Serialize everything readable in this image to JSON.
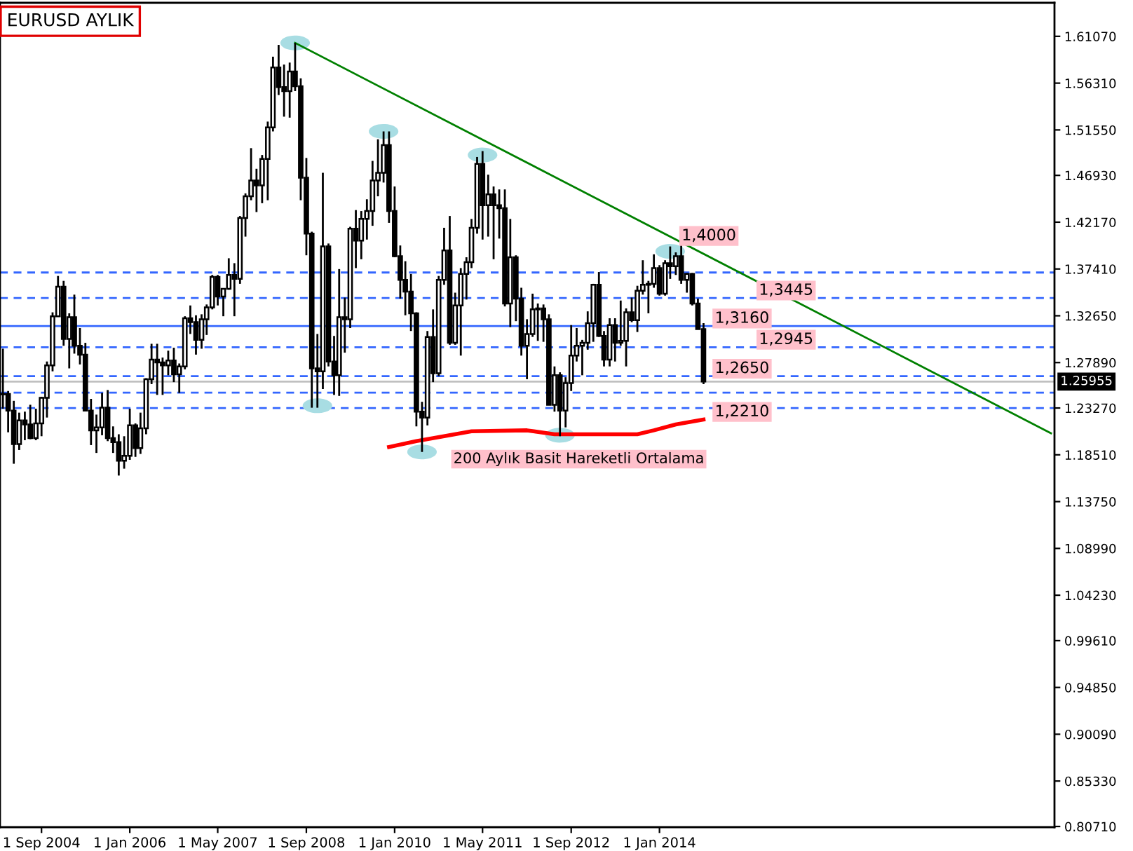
{
  "chart_data": {
    "type": "candlestick",
    "title": "EURUSD AYLIK",
    "x": [
      "2004-02",
      "2004-03",
      "2004-04",
      "2004-05",
      "2004-06",
      "2004-07",
      "2004-08",
      "2004-09",
      "2004-10",
      "2004-11",
      "2004-12",
      "2005-01",
      "2005-02",
      "2005-03",
      "2005-04",
      "2005-05",
      "2005-06",
      "2005-07",
      "2005-08",
      "2005-09",
      "2005-10",
      "2005-11",
      "2005-12",
      "2006-01",
      "2006-02",
      "2006-03",
      "2006-04",
      "2006-05",
      "2006-06",
      "2006-07",
      "2006-08",
      "2006-09",
      "2006-10",
      "2006-11",
      "2006-12",
      "2007-01",
      "2007-02",
      "2007-03",
      "2007-04",
      "2007-05",
      "2007-06",
      "2007-07",
      "2007-08",
      "2007-09",
      "2007-10",
      "2007-11",
      "2007-12",
      "2008-01",
      "2008-02",
      "2008-03",
      "2008-04",
      "2008-05",
      "2008-06",
      "2008-07",
      "2008-08",
      "2008-09",
      "2008-10",
      "2008-11",
      "2008-12",
      "2009-01",
      "2009-02",
      "2009-03",
      "2009-04",
      "2009-05",
      "2009-06",
      "2009-07",
      "2009-08",
      "2009-09",
      "2009-10",
      "2009-11",
      "2009-12",
      "2010-01",
      "2010-02",
      "2010-03",
      "2010-04",
      "2010-05",
      "2010-06",
      "2010-07",
      "2010-08",
      "2010-09",
      "2010-10",
      "2010-11",
      "2010-12",
      "2011-01",
      "2011-02",
      "2011-03",
      "2011-04",
      "2011-05",
      "2011-06",
      "2011-07",
      "2011-08",
      "2011-09",
      "2011-10",
      "2011-11",
      "2011-12",
      "2012-01",
      "2012-02",
      "2012-03",
      "2012-04",
      "2012-05",
      "2012-06",
      "2012-07",
      "2012-08",
      "2012-09",
      "2012-10",
      "2012-11",
      "2012-12",
      "2013-01",
      "2013-02",
      "2013-03",
      "2013-04",
      "2013-05",
      "2013-06",
      "2013-07",
      "2013-08",
      "2013-09",
      "2013-10",
      "2013-11",
      "2013-12",
      "2014-01",
      "2014-02",
      "2014-03",
      "2014-04",
      "2014-05",
      "2014-06",
      "2014-07",
      "2014-08",
      "2014-09"
    ],
    "ohlc": [
      [
        1.2466,
        1.293,
        1.232,
        1.247
      ],
      [
        1.247,
        1.25,
        1.208,
        1.23
      ],
      [
        1.23,
        1.24,
        1.176,
        1.196
      ],
      [
        1.196,
        1.228,
        1.19,
        1.22
      ],
      [
        1.22,
        1.229,
        1.2,
        1.216
      ],
      [
        1.216,
        1.236,
        1.201,
        1.202
      ],
      [
        1.202,
        1.232,
        1.2,
        1.217
      ],
      [
        1.217,
        1.244,
        1.204,
        1.243
      ],
      [
        1.243,
        1.28,
        1.223,
        1.276
      ],
      [
        1.276,
        1.33,
        1.27,
        1.326
      ],
      [
        1.326,
        1.367,
        1.326,
        1.356
      ],
      [
        1.356,
        1.362,
        1.296,
        1.303
      ],
      [
        1.303,
        1.329,
        1.273,
        1.325
      ],
      [
        1.325,
        1.348,
        1.288,
        1.296
      ],
      [
        1.296,
        1.314,
        1.277,
        1.287
      ],
      [
        1.287,
        1.299,
        1.23,
        1.23
      ],
      [
        1.23,
        1.242,
        1.195,
        1.21
      ],
      [
        1.21,
        1.226,
        1.187,
        1.213
      ],
      [
        1.213,
        1.248,
        1.205,
        1.233
      ],
      [
        1.233,
        1.251,
        1.199,
        1.202
      ],
      [
        1.202,
        1.214,
        1.187,
        1.198
      ],
      [
        1.198,
        1.206,
        1.164,
        1.179
      ],
      [
        1.179,
        1.204,
        1.171,
        1.184
      ],
      [
        1.184,
        1.232,
        1.18,
        1.215
      ],
      [
        1.215,
        1.217,
        1.183,
        1.192
      ],
      [
        1.192,
        1.228,
        1.186,
        1.212
      ],
      [
        1.212,
        1.263,
        1.206,
        1.262
      ],
      [
        1.262,
        1.298,
        1.257,
        1.282
      ],
      [
        1.282,
        1.298,
        1.246,
        1.279
      ],
      [
        1.279,
        1.284,
        1.246,
        1.276
      ],
      [
        1.276,
        1.291,
        1.266,
        1.281
      ],
      [
        1.281,
        1.294,
        1.259,
        1.267
      ],
      [
        1.267,
        1.278,
        1.248,
        1.275
      ],
      [
        1.275,
        1.326,
        1.272,
        1.324
      ],
      [
        1.324,
        1.337,
        1.308,
        1.32
      ],
      [
        1.32,
        1.327,
        1.287,
        1.302
      ],
      [
        1.302,
        1.328,
        1.293,
        1.323
      ],
      [
        1.323,
        1.338,
        1.307,
        1.335
      ],
      [
        1.335,
        1.368,
        1.333,
        1.366
      ],
      [
        1.366,
        1.368,
        1.337,
        1.346
      ],
      [
        1.346,
        1.354,
        1.326,
        1.354
      ],
      [
        1.354,
        1.385,
        1.353,
        1.368
      ],
      [
        1.368,
        1.38,
        1.326,
        1.364
      ],
      [
        1.364,
        1.428,
        1.359,
        1.426
      ],
      [
        1.426,
        1.451,
        1.407,
        1.448
      ],
      [
        1.448,
        1.497,
        1.444,
        1.464
      ],
      [
        1.464,
        1.476,
        1.432,
        1.459
      ],
      [
        1.459,
        1.49,
        1.441,
        1.486
      ],
      [
        1.486,
        1.524,
        1.444,
        1.518
      ],
      [
        1.518,
        1.59,
        1.514,
        1.579
      ],
      [
        1.579,
        1.602,
        1.551,
        1.559
      ],
      [
        1.559,
        1.582,
        1.529,
        1.555
      ],
      [
        1.555,
        1.584,
        1.528,
        1.575
      ],
      [
        1.575,
        1.604,
        1.555,
        1.56
      ],
      [
        1.56,
        1.568,
        1.444,
        1.467
      ],
      [
        1.467,
        1.487,
        1.388,
        1.41
      ],
      [
        1.41,
        1.412,
        1.233,
        1.273
      ],
      [
        1.273,
        1.308,
        1.233,
        1.27
      ],
      [
        1.27,
        1.472,
        1.252,
        1.397
      ],
      [
        1.397,
        1.4,
        1.275,
        1.28
      ],
      [
        1.28,
        1.306,
        1.246,
        1.266
      ],
      [
        1.266,
        1.374,
        1.245,
        1.325
      ],
      [
        1.325,
        1.345,
        1.289,
        1.323
      ],
      [
        1.323,
        1.417,
        1.314,
        1.415
      ],
      [
        1.415,
        1.434,
        1.375,
        1.403
      ],
      [
        1.403,
        1.433,
        1.384,
        1.425
      ],
      [
        1.425,
        1.445,
        1.404,
        1.433
      ],
      [
        1.433,
        1.484,
        1.418,
        1.464
      ],
      [
        1.464,
        1.506,
        1.448,
        1.472
      ],
      [
        1.472,
        1.514,
        1.462,
        1.5
      ],
      [
        1.5,
        1.514,
        1.421,
        1.433
      ],
      [
        1.433,
        1.458,
        1.386,
        1.387
      ],
      [
        1.387,
        1.398,
        1.344,
        1.363
      ],
      [
        1.363,
        1.382,
        1.327,
        1.351
      ],
      [
        1.351,
        1.369,
        1.311,
        1.329
      ],
      [
        1.329,
        1.33,
        1.214,
        1.229
      ],
      [
        1.229,
        1.239,
        1.188,
        1.223
      ],
      [
        1.223,
        1.311,
        1.215,
        1.305
      ],
      [
        1.305,
        1.333,
        1.259,
        1.268
      ],
      [
        1.268,
        1.367,
        1.265,
        1.363
      ],
      [
        1.363,
        1.416,
        1.358,
        1.393
      ],
      [
        1.393,
        1.428,
        1.297,
        1.299
      ],
      [
        1.299,
        1.35,
        1.297,
        1.337
      ],
      [
        1.337,
        1.375,
        1.286,
        1.369
      ],
      [
        1.369,
        1.386,
        1.343,
        1.381
      ],
      [
        1.381,
        1.425,
        1.375,
        1.416
      ],
      [
        1.416,
        1.488,
        1.41,
        1.481
      ],
      [
        1.481,
        1.494,
        1.404,
        1.439
      ],
      [
        1.439,
        1.47,
        1.407,
        1.45
      ],
      [
        1.45,
        1.458,
        1.384,
        1.439
      ],
      [
        1.439,
        1.455,
        1.405,
        1.436
      ],
      [
        1.436,
        1.455,
        1.336,
        1.339
      ],
      [
        1.339,
        1.425,
        1.315,
        1.386
      ],
      [
        1.386,
        1.388,
        1.321,
        1.344
      ],
      [
        1.344,
        1.355,
        1.286,
        1.296
      ],
      [
        1.296,
        1.323,
        1.262,
        1.308
      ],
      [
        1.308,
        1.349,
        1.305,
        1.333
      ],
      [
        1.333,
        1.339,
        1.301,
        1.334
      ],
      [
        1.334,
        1.338,
        1.3,
        1.323
      ],
      [
        1.323,
        1.328,
        1.236,
        1.236
      ],
      [
        1.236,
        1.275,
        1.229,
        1.266
      ],
      [
        1.266,
        1.269,
        1.204,
        1.23
      ],
      [
        1.23,
        1.264,
        1.213,
        1.258
      ],
      [
        1.258,
        1.317,
        1.25,
        1.286
      ],
      [
        1.286,
        1.314,
        1.28,
        1.296
      ],
      [
        1.296,
        1.302,
        1.266,
        1.299
      ],
      [
        1.299,
        1.331,
        1.292,
        1.319
      ],
      [
        1.319,
        1.359,
        1.3,
        1.358
      ],
      [
        1.358,
        1.371,
        1.305,
        1.306
      ],
      [
        1.306,
        1.311,
        1.275,
        1.282
      ],
      [
        1.282,
        1.324,
        1.275,
        1.317
      ],
      [
        1.317,
        1.324,
        1.28,
        1.299
      ],
      [
        1.299,
        1.342,
        1.296,
        1.301
      ],
      [
        1.301,
        1.334,
        1.275,
        1.33
      ],
      [
        1.33,
        1.345,
        1.32,
        1.322
      ],
      [
        1.322,
        1.357,
        1.31,
        1.352
      ],
      [
        1.352,
        1.383,
        1.348,
        1.358
      ],
      [
        1.358,
        1.362,
        1.329,
        1.359
      ],
      [
        1.359,
        1.389,
        1.355,
        1.375
      ],
      [
        1.375,
        1.378,
        1.347,
        1.349
      ],
      [
        1.349,
        1.383,
        1.347,
        1.38
      ],
      [
        1.38,
        1.397,
        1.364,
        1.377
      ],
      [
        1.377,
        1.391,
        1.368,
        1.387
      ],
      [
        1.387,
        1.399,
        1.359,
        1.363
      ],
      [
        1.363,
        1.37,
        1.35,
        1.369
      ],
      [
        1.369,
        1.37,
        1.337,
        1.339
      ],
      [
        1.339,
        1.344,
        1.313,
        1.313
      ],
      [
        1.313,
        1.319,
        1.257,
        1.2596
      ]
    ],
    "series": [
      {
        "type": "scatter",
        "color": "#a8dde3",
        "x": [
          "2008-07",
          "2009-11",
          "2011-05",
          "2014-03",
          "2008-11",
          "2010-06",
          "2012-07"
        ],
        "values": [
          1.604,
          1.514,
          1.49,
          1.392,
          1.235,
          1.188,
          1.205
        ]
      },
      {
        "type": "line",
        "color": "#008000",
        "x": [
          "2008-07",
          "2019-12"
        ],
        "values": [
          1.604,
          1.207
        ]
      },
      {
        "type": "line",
        "color": "#ff0000",
        "x": [
          "2009-12",
          "2010-05",
          "2010-10",
          "2011-03",
          "2012-01",
          "2012-06",
          "2013-09",
          "2013-12",
          "2014-04",
          "2014-09"
        ],
        "values": [
          1.193,
          1.199,
          1.204,
          1.209,
          1.21,
          1.206,
          1.206,
          1.21,
          1.216,
          1.221
        ]
      }
    ],
    "ref_lines": [
      {
        "axis": "y",
        "value": 1.3705,
        "color": "#3366ff",
        "line_style": "dashed"
      },
      {
        "axis": "y",
        "value": 1.3445,
        "color": "#3366ff",
        "line_style": "dashed"
      },
      {
        "axis": "y",
        "value": 1.316,
        "color": "#3366ff",
        "line_style": "solid"
      },
      {
        "axis": "y",
        "value": 1.2945,
        "color": "#3366ff",
        "line_style": "dashed"
      },
      {
        "axis": "y",
        "value": 1.265,
        "color": "#3366ff",
        "line_style": "dashed"
      },
      {
        "axis": "y",
        "value": 1.2483,
        "color": "#3366ff",
        "line_style": "dashed"
      },
      {
        "axis": "y",
        "value": 1.2327,
        "color": "#3366ff",
        "line_style": "dashed"
      },
      {
        "axis": "y",
        "value": 1.25955,
        "label": "1.25955",
        "color": "#c0c0c0",
        "line_style": "solid"
      }
    ],
    "annotations": [
      {
        "text": "1,4000",
        "x": "2014-04",
        "y": 1.4
      },
      {
        "text": "1,3445",
        "x": "2015-06",
        "y": 1.3445
      },
      {
        "text": "1,3160",
        "x": "2014-10",
        "y": 1.316
      },
      {
        "text": "1,2945",
        "x": "2015-06",
        "y": 1.2945
      },
      {
        "text": "1,2650",
        "x": "2014-10",
        "y": 1.265
      },
      {
        "text": "1,2210",
        "x": "2014-10",
        "y": 1.221
      },
      "200 Aylık Basit Hareketli Ortalama"
    ],
    "xlim": [
      "2004-01-16",
      "2019-12-20"
    ],
    "xticks": [
      {
        "value": "2004-09-01",
        "label": "1 Sep 2004"
      },
      {
        "value": "2006-01-01",
        "label": "1 Jan 2006"
      },
      {
        "value": "2007-05-01",
        "label": "1 May 2007"
      },
      {
        "value": "2008-09-01",
        "label": "1 Sep 2008"
      },
      {
        "value": "2010-01-01",
        "label": "1 Jan 2010"
      },
      {
        "value": "2011-05-01",
        "label": "1 May 2011"
      },
      {
        "value": "2012-09-01",
        "label": "1 Sep 2012"
      },
      {
        "value": "2014-01-01",
        "label": "1 Jan 2014"
      }
    ],
    "ylim": [
      0.8064,
      1.6448
    ],
    "yticks": [
      {
        "value": 0.8071,
        "label": "0.80710"
      },
      {
        "value": 0.8533,
        "label": "0.85330"
      },
      {
        "value": 0.9009,
        "label": "0.90090"
      },
      {
        "value": 0.9485,
        "label": "0.94850"
      },
      {
        "value": 0.9961,
        "label": "0.99610"
      },
      {
        "value": 1.0423,
        "label": "1.04230"
      },
      {
        "value": 1.0899,
        "label": "1.08990"
      },
      {
        "value": 1.1375,
        "label": "1.13750"
      },
      {
        "value": 1.1851,
        "label": "1.18510"
      },
      {
        "value": 1.2327,
        "label": "1.23270"
      },
      {
        "value": 1.2789,
        "label": "1.27890"
      },
      {
        "value": 1.3265,
        "label": "1.32650"
      },
      {
        "value": 1.3741,
        "label": "1.37410"
      },
      {
        "value": 1.4217,
        "label": "1.42170"
      },
      {
        "value": 1.4693,
        "label": "1.46930"
      },
      {
        "value": 1.5155,
        "label": "1.51550"
      },
      {
        "value": 1.5631,
        "label": "1.56310"
      },
      {
        "value": 1.6107,
        "label": "1.61070"
      }
    ],
    "grid": false
  }
}
